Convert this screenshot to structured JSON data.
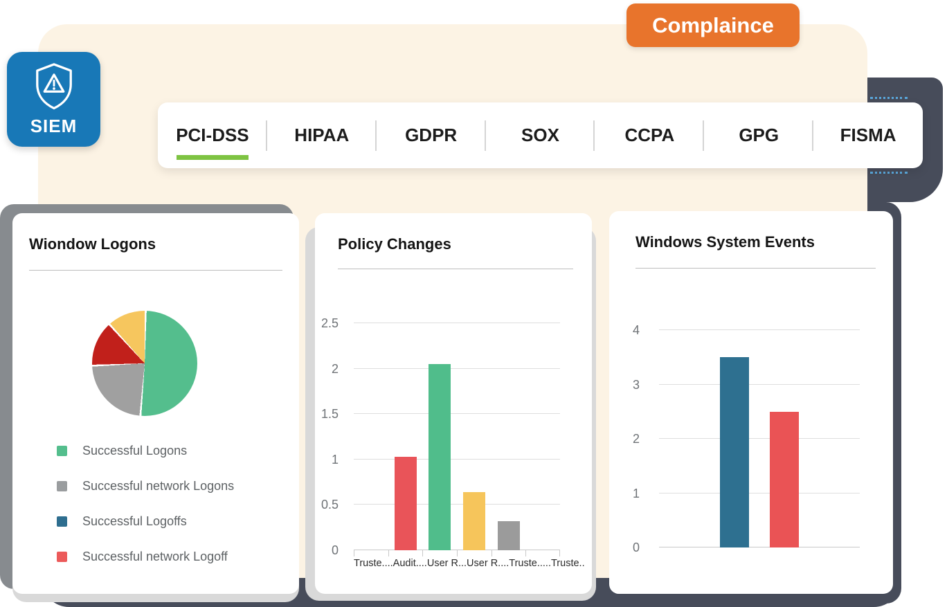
{
  "page": {
    "badge": {
      "label": "Complaince",
      "bg": "#E8742C"
    },
    "app_tile": {
      "label": "SIEM",
      "bg": "#1878B7",
      "icon": "shield-warning-icon"
    },
    "tabs": [
      {
        "label": "PCI-DSS",
        "active": true
      },
      {
        "label": "HIPAA",
        "active": false
      },
      {
        "label": "GDPR",
        "active": false
      },
      {
        "label": "SOX",
        "active": false
      },
      {
        "label": "CCPA",
        "active": false
      },
      {
        "label": "GPG",
        "active": false
      },
      {
        "label": "FISMA",
        "active": false
      }
    ],
    "colors": {
      "cream_panel": "#FCF3E4",
      "slate_backdrop": "#474C5A",
      "active_tab_underline": "#7EC342",
      "card_shadow_dark_gray": "#878B8F",
      "card_shadow_light_gray": "#D9D9D9"
    }
  },
  "chart_data": [
    {
      "type": "pie",
      "title": "Wiondow Logons",
      "slices": [
        {
          "value": 51,
          "color": "#54BE8D"
        },
        {
          "value": 23,
          "color": "#A0A0A0"
        },
        {
          "value": 14,
          "color": "#C1201B"
        },
        {
          "value": 12,
          "color": "#F6C65E"
        }
      ],
      "legend": [
        {
          "label": "Successful Logons",
          "color": "#54BE8D"
        },
        {
          "label": "Successful network Logons",
          "color": "#9A9D9F"
        },
        {
          "label": "Successful Logoffs",
          "color": "#2E6E8F"
        },
        {
          "label": "Successful network Logoff",
          "color": "#EC5A5A"
        }
      ],
      "legend_position": "bottom-left",
      "grid": false
    },
    {
      "type": "bar",
      "title": "Policy Changes",
      "slots": 6,
      "categories": [
        "Truste....",
        "Audit....",
        "User R...",
        "User R....",
        "Truste.....",
        "Truste.."
      ],
      "bars": [
        {
          "slot": 2,
          "value": 1.03,
          "color": "#E95459"
        },
        {
          "slot": 3,
          "value": 2.05,
          "color": "#50BD8B"
        },
        {
          "slot": 4,
          "value": 0.64,
          "color": "#F6C55B"
        },
        {
          "slot": 5,
          "value": 0.32,
          "color": "#9B9B9B"
        }
      ],
      "ylim": [
        0,
        2.5
      ],
      "yticks": [
        "0",
        "0.5",
        "1",
        "1.5",
        "2",
        "2.5"
      ],
      "grid": true,
      "xticks": true
    },
    {
      "type": "bar",
      "title": "Windows System Events",
      "slots": 4,
      "categories": [
        "",
        "",
        "",
        ""
      ],
      "bars": [
        {
          "slot": 2,
          "value": 3.5,
          "color": "#2E7090"
        },
        {
          "slot": 3,
          "value": 2.5,
          "color": "#EA5355"
        }
      ],
      "ylim": [
        0,
        4
      ],
      "yticks": [
        "0",
        "1",
        "2",
        "3",
        "4"
      ],
      "grid": true,
      "xticks": false
    }
  ]
}
